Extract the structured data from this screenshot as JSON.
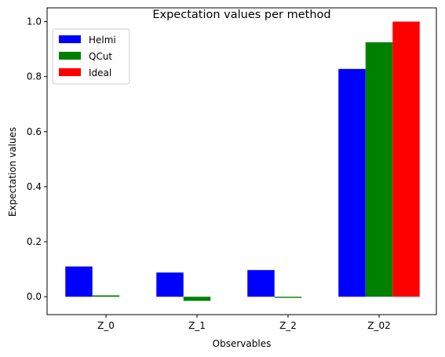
{
  "chart_data": {
    "type": "bar",
    "title": "Expectation values per method",
    "xlabel": "Observables",
    "ylabel": "Expectation values",
    "categories": [
      "Z_0",
      "Z_1",
      "Z_2",
      "Z_02"
    ],
    "series": [
      {
        "name": "Helmi",
        "color": "#0000ff",
        "values": [
          0.11,
          0.088,
          0.097,
          0.828
        ]
      },
      {
        "name": "QCut",
        "color": "#008000",
        "values": [
          0.005,
          -0.015,
          -0.004,
          0.925
        ]
      },
      {
        "name": "Ideal",
        "color": "#ff0000",
        "values": [
          0.0,
          0.0,
          0.0,
          1.0
        ]
      }
    ],
    "ylim": [
      -0.065,
      1.05
    ],
    "yticks": [
      0.0,
      0.2,
      0.4,
      0.6,
      0.8,
      1.0
    ],
    "ytick_labels": [
      "0.0",
      "0.2",
      "0.4",
      "0.6",
      "0.8",
      "1.0"
    ],
    "legend_position": "top-left",
    "grid": false
  }
}
